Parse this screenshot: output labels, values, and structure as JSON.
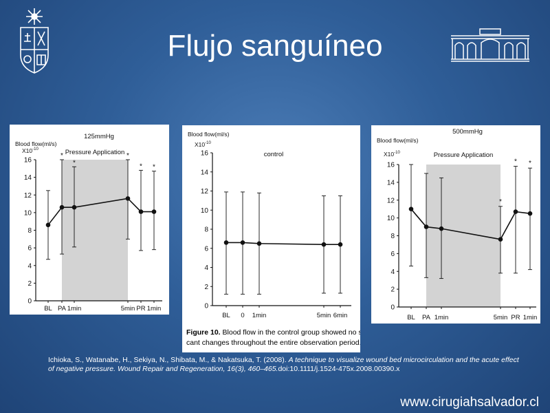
{
  "slide": {
    "title": "Flujo sanguíneo",
    "website": "www.cirugiahsalvador.cl",
    "citation_authors": "Ichioka, S., Watanabe, H., Sekiya, N., Shibata, M., & Nakatsuka, T. (2008). ",
    "citation_title": "A technique to visualize wound bed microcirculation and the acute effect of negative pressure. Wound Repair and Regeneration, 16(3), 460–465.",
    "citation_doi": "doi:10.1111/j.1524-475x.2008.00390.x",
    "figure_caption_label": "Figure 10.",
    "figure_caption_line1": " Blood flow in the control group showed no signifi-",
    "figure_caption_line2": "cant changes throughout the entire observation period."
  },
  "colors": {
    "background": "#2f5e98",
    "shade": "#d3d3d3",
    "ink": "#111111"
  },
  "chart_data": [
    {
      "type": "line",
      "title": "125mmHg",
      "ylabel": "Blood flow(ml/s)",
      "y_exponent": "X10",
      "y_exponent_sup": "-10",
      "ylim": [
        0,
        16
      ],
      "yticks": [
        0,
        2,
        4,
        6,
        8,
        10,
        12,
        14,
        16
      ],
      "categories": [
        "BL",
        "PA",
        "1min",
        "5min",
        "PR",
        "1min"
      ],
      "shaded_label": "Pressure Application",
      "shaded_range": [
        1,
        3
      ],
      "series": [
        {
          "values": [
            8.6,
            10.6,
            10.6,
            11.6,
            10.1,
            10.1
          ],
          "err_upper": [
            12.5,
            16.0,
            15.2,
            16.0,
            14.8,
            14.7
          ],
          "err_lower": [
            4.7,
            5.3,
            6.1,
            7.0,
            5.7,
            5.8
          ],
          "significant": [
            false,
            true,
            true,
            true,
            true,
            true
          ]
        }
      ],
      "marker": "*"
    },
    {
      "type": "line",
      "title": "control",
      "ylabel": "Blood flow(ml/s)",
      "y_exponent": "X10",
      "y_exponent_sup": "-10",
      "ylim": [
        0,
        16
      ],
      "yticks": [
        0,
        2,
        4,
        6,
        8,
        10,
        12,
        14,
        16
      ],
      "categories": [
        "BL",
        "0",
        "1min",
        "5min",
        "6min"
      ],
      "series": [
        {
          "values": [
            6.6,
            6.6,
            6.5,
            6.4,
            6.4
          ],
          "err_upper": [
            11.9,
            11.9,
            11.8,
            11.5,
            11.5
          ],
          "err_lower": [
            1.2,
            1.2,
            1.2,
            1.3,
            1.3
          ],
          "significant": [
            false,
            false,
            false,
            false,
            false
          ]
        }
      ]
    },
    {
      "type": "line",
      "title": "500mmHg",
      "ylabel": "Blood flow(ml/s)",
      "y_exponent": "X10",
      "y_exponent_sup": "-10",
      "ylim": [
        0,
        16
      ],
      "yticks": [
        0,
        2,
        4,
        6,
        8,
        10,
        12,
        14,
        16
      ],
      "categories": [
        "BL",
        "PA",
        "1min",
        "5min",
        "PR",
        "1min"
      ],
      "shaded_label": "Pressure Application",
      "shaded_range": [
        1,
        3
      ],
      "series": [
        {
          "values": [
            11.0,
            9.0,
            8.8,
            7.6,
            10.7,
            10.5
          ],
          "err_upper": [
            16.0,
            15.0,
            14.5,
            11.3,
            15.8,
            15.6
          ],
          "err_lower": [
            4.6,
            3.3,
            3.2,
            3.8,
            3.8,
            4.2
          ],
          "significant": [
            false,
            false,
            false,
            true,
            true,
            true
          ]
        }
      ],
      "marker": "*"
    }
  ]
}
